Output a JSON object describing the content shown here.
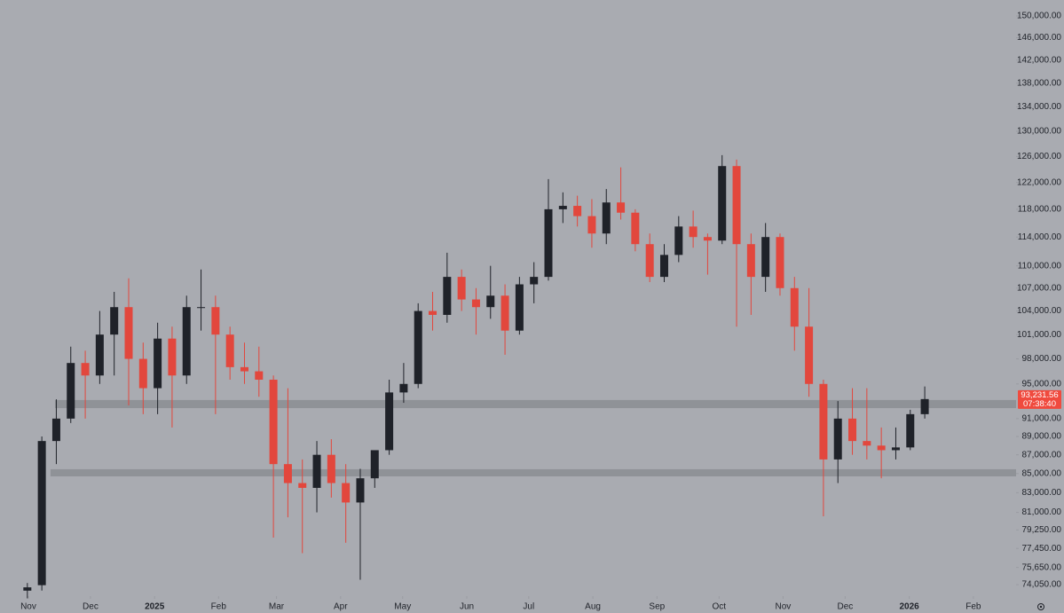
{
  "chart_data": {
    "type": "candlestick",
    "log_scale": true,
    "grid": false,
    "up_color": "#1f2229",
    "down_color": "#e2473d",
    "zone_color": "#8b8d93",
    "ylim": [
      73000,
      153000
    ],
    "xlim": [
      -1.89,
      68.31
    ],
    "yticks": [
      {
        "value": 74050,
        "label": "74,050.00"
      },
      {
        "value": 75650,
        "label": "75,650.00"
      },
      {
        "value": 77450,
        "label": "77,450.00"
      },
      {
        "value": 79250,
        "label": "79,250.00"
      },
      {
        "value": 81000,
        "label": "81,000.00"
      },
      {
        "value": 83000,
        "label": "83,000.00"
      },
      {
        "value": 85000,
        "label": "85,000.00"
      },
      {
        "value": 87000,
        "label": "87,000.00"
      },
      {
        "value": 89000,
        "label": "89,000.00"
      },
      {
        "value": 91000,
        "label": "91,000.00"
      },
      {
        "value": 95000,
        "label": "95,000.00"
      },
      {
        "value": 98000,
        "label": "98,000.00"
      },
      {
        "value": 101000,
        "label": "101,000.00"
      },
      {
        "value": 104000,
        "label": "104,000.00"
      },
      {
        "value": 107000,
        "label": "107,000.00"
      },
      {
        "value": 110000,
        "label": "110,000.00"
      },
      {
        "value": 114000,
        "label": "114,000.00"
      },
      {
        "value": 118000,
        "label": "118,000.00"
      },
      {
        "value": 122000,
        "label": "122,000.00"
      },
      {
        "value": 126000,
        "label": "126,000.00"
      },
      {
        "value": 130000,
        "label": "130,000.00"
      },
      {
        "value": 134000,
        "label": "134,000.00"
      },
      {
        "value": 138000,
        "label": "138,000.00"
      },
      {
        "value": 142000,
        "label": "142,000.00"
      },
      {
        "value": 146000,
        "label": "146,000.00"
      },
      {
        "value": 150000,
        "label": "150,000.00"
      }
    ],
    "xticks": [
      {
        "value": 0.07,
        "label": "Nov"
      },
      {
        "value": 4.36,
        "label": "Dec"
      },
      {
        "value": 8.79,
        "label": "2025"
      },
      {
        "value": 13.21,
        "label": "Feb"
      },
      {
        "value": 17.21,
        "label": "Mar"
      },
      {
        "value": 21.64,
        "label": "Apr"
      },
      {
        "value": 25.93,
        "label": "May"
      },
      {
        "value": 30.36,
        "label": "Jun"
      },
      {
        "value": 34.64,
        "label": "Jul"
      },
      {
        "value": 39.07,
        "label": "Aug"
      },
      {
        "value": 43.5,
        "label": "Sep"
      },
      {
        "value": 47.79,
        "label": "Oct"
      },
      {
        "value": 52.21,
        "label": "Nov"
      },
      {
        "value": 56.5,
        "label": "Dec"
      },
      {
        "value": 60.93,
        "label": "2026"
      },
      {
        "value": 65.36,
        "label": "Feb"
      }
    ],
    "candles": {
      "open": [
        73500,
        74000,
        88500,
        91000,
        97500,
        96000,
        101000,
        104500,
        98000,
        94500,
        100500,
        96000,
        104500,
        104500,
        101000,
        97000,
        96500,
        95500,
        86000,
        84000,
        83500,
        87000,
        84000,
        82000,
        84500,
        87500,
        94000,
        95000,
        104000,
        103500,
        108500,
        105500,
        104500,
        106000,
        101500,
        107500,
        108500,
        118000,
        118500,
        117000,
        114500,
        119000,
        117500,
        113000,
        108500,
        111500,
        115500,
        114000,
        113500,
        124500,
        113000,
        108500,
        114000,
        107000,
        102000,
        95000,
        86500,
        91000,
        88500,
        88000,
        87500,
        87800,
        91500
      ],
      "high": [
        74200,
        89000,
        93200,
        99500,
        99000,
        104000,
        106500,
        108300,
        100000,
        102500,
        102000,
        106000,
        109500,
        106000,
        102000,
        100000,
        99500,
        96000,
        94500,
        86500,
        88500,
        88700,
        86000,
        85500,
        86500,
        95500,
        97500,
        105000,
        106500,
        111800,
        109500,
        107000,
        110000,
        107500,
        108500,
        110500,
        122500,
        120500,
        120000,
        119500,
        121000,
        124300,
        118000,
        114500,
        113000,
        117000,
        117800,
        114500,
        126200,
        125500,
        114500,
        116000,
        114500,
        108500,
        107000,
        95500,
        93000,
        94500,
        94500,
        90000,
        90000,
        92000,
        94700
      ],
      "low": [
        72800,
        73500,
        86000,
        90500,
        91000,
        95000,
        96000,
        92500,
        91500,
        91500,
        90000,
        95000,
        101500,
        91500,
        95500,
        95000,
        93500,
        78500,
        80500,
        77000,
        81000,
        82500,
        78000,
        74500,
        83500,
        87000,
        92800,
        94500,
        101500,
        102500,
        104000,
        101000,
        103000,
        98500,
        101000,
        105000,
        108000,
        116000,
        115500,
        112500,
        113000,
        116500,
        112000,
        107800,
        107800,
        110500,
        112500,
        108800,
        113000,
        102000,
        103500,
        106500,
        106000,
        99000,
        93500,
        80600,
        84000,
        87000,
        86500,
        84500,
        86500,
        87500,
        91000
      ],
      "close": [
        73800,
        88500,
        91000,
        97500,
        96000,
        101000,
        104500,
        98000,
        94500,
        100500,
        96000,
        104500,
        104500,
        101000,
        97000,
        96500,
        95500,
        86000,
        84000,
        83500,
        87000,
        84000,
        82000,
        84500,
        87500,
        94000,
        95000,
        104000,
        103500,
        108500,
        105500,
        104500,
        106000,
        101500,
        107500,
        108500,
        118000,
        118500,
        117000,
        114500,
        119000,
        117500,
        113000,
        108500,
        111500,
        115500,
        114000,
        113500,
        124500,
        113000,
        108500,
        114000,
        107000,
        102000,
        95000,
        86500,
        91000,
        88500,
        88000,
        87500,
        87800,
        91500,
        93231.56
      ]
    },
    "zones": [
      {
        "x_start": 1.91,
        "low": 92190,
        "high": 93120
      },
      {
        "x_start": 1.6,
        "low": 84700,
        "high": 85450
      }
    ],
    "last_price": {
      "value": 93231.56,
      "label": "93,231.56"
    },
    "countdown": "07:38:40"
  }
}
